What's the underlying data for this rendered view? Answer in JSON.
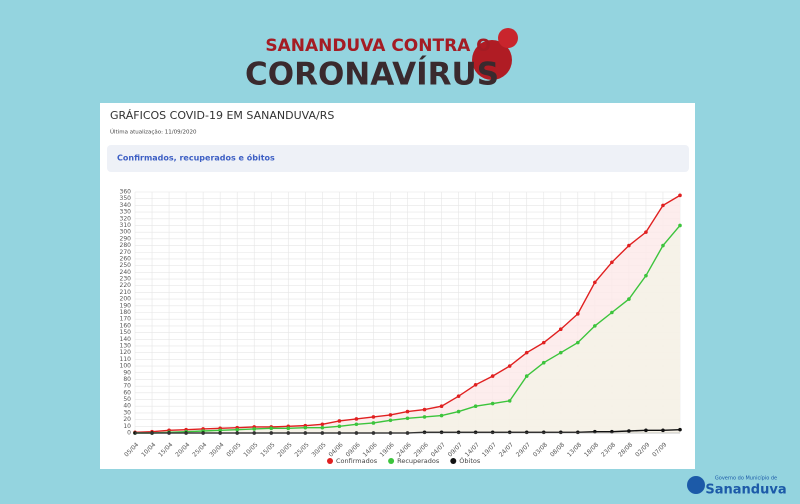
{
  "header": {
    "line1": "SANANDUVA CONTRA O",
    "line2": "CORONAVÍRUS"
  },
  "footer": {
    "small": "Governo do Município de",
    "brand": "Sananduva"
  },
  "chart_data": {
    "type": "line",
    "title": "GRÁFICOS COVID-19 EM SANANDUVA/RS",
    "subtitle": "Última atualização: 11/09/2020",
    "section_title": "Confirmados, recuperados e óbitos",
    "categories": [
      "05/04",
      "10/04",
      "15/04",
      "20/04",
      "25/04",
      "30/04",
      "05/05",
      "10/05",
      "15/05",
      "20/05",
      "25/05",
      "30/05",
      "04/06",
      "09/06",
      "14/06",
      "19/06",
      "24/06",
      "29/06",
      "04/07",
      "09/07",
      "14/07",
      "19/07",
      "24/07",
      "29/07",
      "03/08",
      "08/08",
      "13/08",
      "18/08",
      "23/08",
      "28/08",
      "02/09",
      "07/09",
      null
    ],
    "series": [
      {
        "name": "Confirmados",
        "color": "#e02020",
        "fill": "#fde8e8",
        "values": [
          1,
          2,
          4,
          5,
          6,
          7,
          8,
          9,
          9,
          10,
          11,
          13,
          18,
          21,
          24,
          27,
          32,
          35,
          40,
          55,
          72,
          85,
          100,
          120,
          135,
          155,
          178,
          225,
          255,
          280,
          300,
          340,
          355
        ]
      },
      {
        "name": "Recuperados",
        "color": "#3cc43c",
        "fill": "#f4f3e6",
        "values": [
          0,
          0,
          1,
          2,
          3,
          4,
          5,
          6,
          7,
          7,
          8,
          8,
          10,
          13,
          15,
          19,
          22,
          24,
          26,
          32,
          40,
          44,
          48,
          85,
          105,
          120,
          135,
          160,
          180,
          200,
          235,
          280,
          310
        ]
      },
      {
        "name": "Óbitos",
        "color": "#111111",
        "fill": null,
        "values": [
          0,
          0,
          0,
          0,
          0,
          0,
          0,
          0,
          0,
          0,
          0,
          0,
          0,
          0,
          0,
          0,
          0,
          1,
          1,
          1,
          1,
          1,
          1,
          1,
          1,
          1,
          1,
          2,
          2,
          3,
          4,
          4,
          5
        ]
      }
    ],
    "ylim": [
      0,
      360
    ],
    "yticks": [
      0,
      10,
      20,
      30,
      40,
      50,
      60,
      70,
      80,
      90,
      100,
      110,
      120,
      130,
      140,
      150,
      160,
      170,
      180,
      190,
      200,
      210,
      220,
      230,
      240,
      250,
      260,
      270,
      280,
      290,
      300,
      310,
      320,
      330,
      340,
      350,
      360
    ],
    "grid": true,
    "legend": "bottom"
  }
}
